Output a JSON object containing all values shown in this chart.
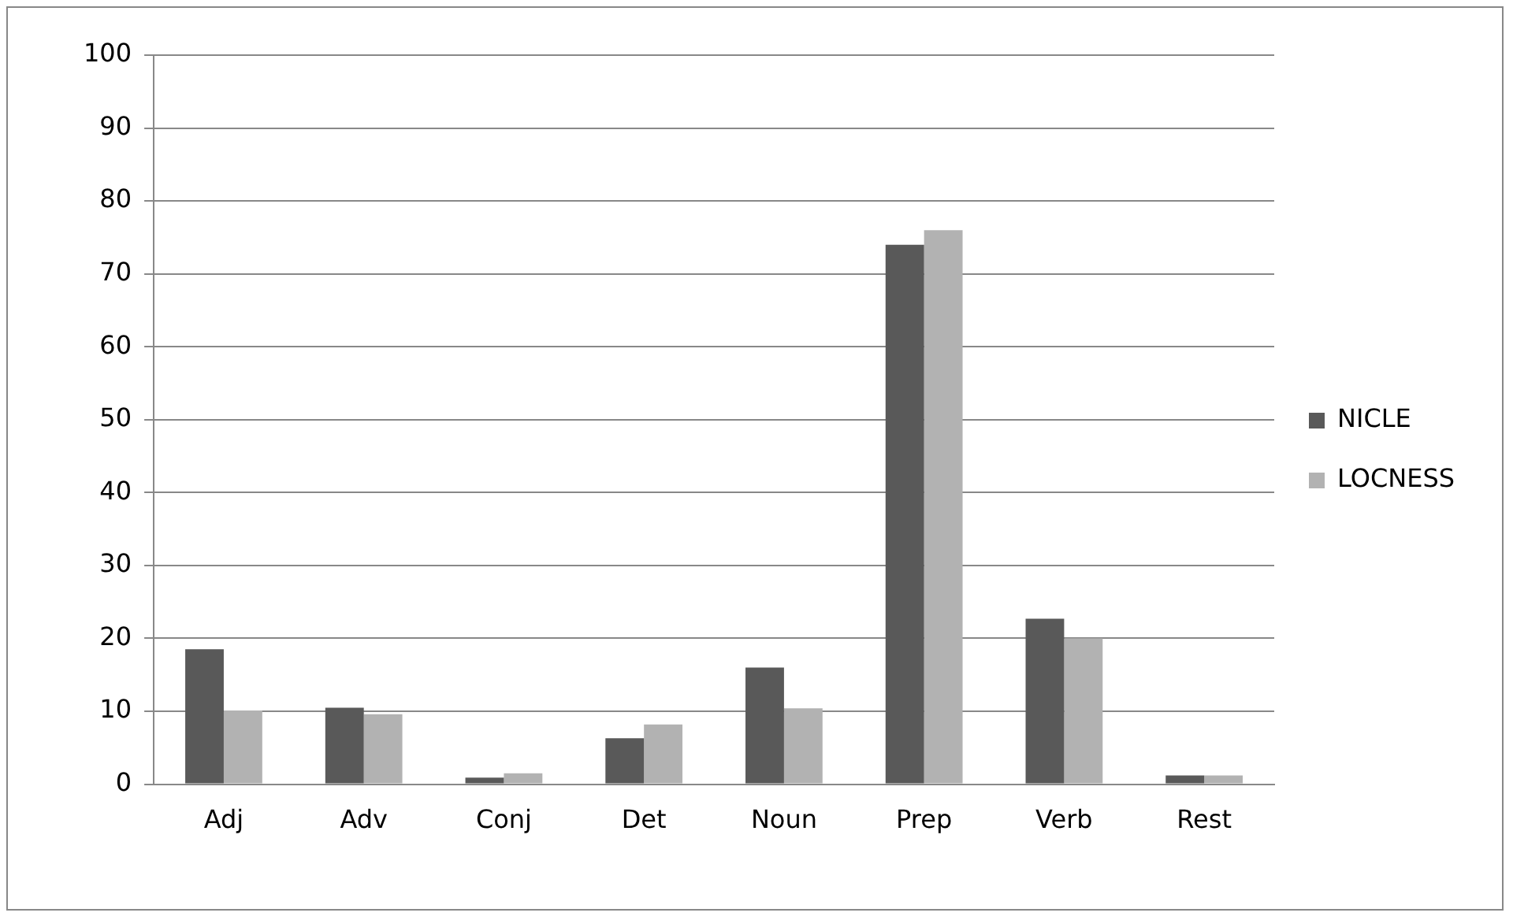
{
  "chart_data": {
    "type": "bar",
    "categories": [
      "Adj",
      "Adv",
      "Conj",
      "Det",
      "Noun",
      "Prep",
      "Verb",
      "Rest"
    ],
    "series": [
      {
        "name": "NICLE",
        "color": "#595959",
        "values": [
          18.5,
          10.5,
          0.9,
          6.3,
          16,
          74,
          22.7,
          1.2
        ]
      },
      {
        "name": "LOCNESS",
        "color": "#b2b2b2",
        "values": [
          10.1,
          9.6,
          1.5,
          8.2,
          10.4,
          76,
          20,
          1.2
        ]
      }
    ],
    "ylim": [
      0,
      100
    ],
    "yticks": [
      0,
      10,
      20,
      30,
      40,
      50,
      60,
      70,
      80,
      90,
      100
    ],
    "grid": "y",
    "legend": "right"
  }
}
